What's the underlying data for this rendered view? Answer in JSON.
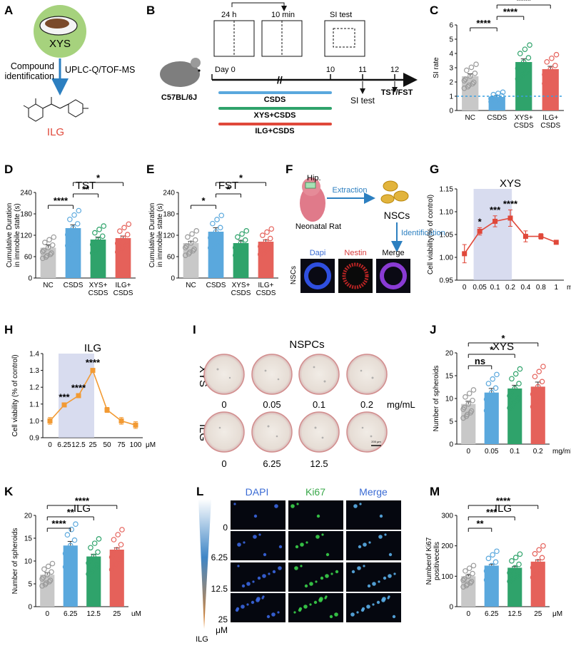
{
  "panel_labels": [
    "A",
    "B",
    "C",
    "D",
    "E",
    "F",
    "G",
    "H",
    "I",
    "J",
    "K",
    "L",
    "M"
  ],
  "panelA": {
    "herb": "XYS",
    "method": "UPLC-Q/TOF-MS",
    "step": [
      "Compound",
      "identification"
    ],
    "product": "ILG"
  },
  "panelB": {
    "strain": "C57BL/6J",
    "top_24h": "24 h",
    "top_10min": "10 min",
    "si_box": "SI test",
    "days": [
      "Day 0",
      "10",
      "11",
      "12"
    ],
    "si_test": "SI test",
    "tst_fst": "TST/FST",
    "groups": [
      "CSDS",
      "XYS+CSDS",
      "ILG+CSDS"
    ],
    "group_colors": [
      "#5aa8dd",
      "#2fa36b",
      "#e0483a"
    ]
  },
  "panelF": {
    "region": "Hip.",
    "animal": "Neonatal Rat",
    "extraction": "Extraction",
    "nscs": "NSCs",
    "identification": "Identification",
    "stains": [
      "Dapi",
      "Nestin",
      "Merge"
    ],
    "row_label": "NSCs"
  },
  "panelI": {
    "title": "NSPCs",
    "rows": [
      "XYS",
      "ILG"
    ],
    "xys_doses": [
      "0",
      "0.05",
      "0.1",
      "0.2"
    ],
    "xys_unit": "mg/mL",
    "ilg_doses": [
      "0",
      "6.25",
      "12.5"
    ],
    "scale": "200 μm"
  },
  "panelL": {
    "channels": [
      "DAPI",
      "Ki67",
      "Merge"
    ],
    "channel_colors": [
      "#3a6bd4",
      "#3aa84a",
      "#3a6bd4"
    ],
    "doses": [
      "0",
      "6.25",
      "12.5",
      "25"
    ],
    "unit": "μM",
    "gradient_label": "ILG"
  },
  "chart_data": [
    {
      "id": "C",
      "type": "bar",
      "title": "",
      "ylabel": "SI rate",
      "ylim": [
        0,
        6
      ],
      "yticks": [
        "0",
        "1",
        "2",
        "3",
        "4",
        "5",
        "6"
      ],
      "categories": [
        "NC",
        "CSDS",
        "XYS+\nCSDS",
        "ILG+\nCSDS"
      ],
      "values": [
        2.4,
        0.95,
        3.4,
        2.9
      ],
      "errors": [
        0.18,
        0.1,
        0.22,
        0.2
      ],
      "colors": [
        "#c8c8c8",
        "#5aa8dd",
        "#2fa36b",
        "#e5615a"
      ],
      "reference_line": 1.0,
      "significance": [
        {
          "from": 0,
          "to": 1,
          "label": "****"
        },
        {
          "from": 1,
          "to": 2,
          "label": "****"
        },
        {
          "from": 1,
          "to": 3,
          "label": "****"
        }
      ]
    },
    {
      "id": "D",
      "type": "bar",
      "title": "TST",
      "ylabel": "Cumulative Duration\nin immobile state (s)",
      "ylim": [
        0,
        240
      ],
      "yticks": [
        "0",
        "60",
        "120",
        "180",
        "240"
      ],
      "categories": [
        "NC",
        "CSDS",
        "XYS+\nCSDS",
        "ILG+\nCSDS"
      ],
      "values": [
        85,
        140,
        108,
        112
      ],
      "errors": [
        8,
        9,
        7,
        6
      ],
      "colors": [
        "#c8c8c8",
        "#5aa8dd",
        "#2fa36b",
        "#e5615a"
      ],
      "significance": [
        {
          "from": 0,
          "to": 1,
          "label": "****"
        },
        {
          "from": 1,
          "to": 2,
          "label": "**"
        },
        {
          "from": 1,
          "to": 3,
          "label": "*"
        }
      ]
    },
    {
      "id": "E",
      "type": "bar",
      "title": "FST",
      "ylabel": "Cumulative Duration\nin immobile state (s)",
      "ylim": [
        0,
        240
      ],
      "yticks": [
        "0",
        "60",
        "120",
        "180",
        "240"
      ],
      "categories": [
        "NC",
        "CSDS",
        "XYS+\nCSDS",
        "ILG+\nCSDS"
      ],
      "values": [
        98,
        130,
        98,
        102
      ],
      "errors": [
        5,
        11,
        8,
        5
      ],
      "colors": [
        "#c8c8c8",
        "#5aa8dd",
        "#2fa36b",
        "#e5615a"
      ],
      "significance": [
        {
          "from": 0,
          "to": 1,
          "label": "*"
        },
        {
          "from": 1,
          "to": 2,
          "label": "*"
        },
        {
          "from": 1,
          "to": 3,
          "label": "*"
        }
      ]
    },
    {
      "id": "G",
      "type": "line",
      "title": "XYS",
      "ylabel": "Cell viability(% of control)",
      "xunit": "mg/mL",
      "ylim": [
        0.95,
        1.15
      ],
      "yticks": [
        "0.95",
        "1.00",
        "1.05",
        "1.10",
        "1.15"
      ],
      "categories": [
        "0",
        "0.05",
        "0.1",
        "0.2",
        "0.4",
        "0.8",
        "1"
      ],
      "values": [
        1.008,
        1.057,
        1.079,
        1.086,
        1.046,
        1.046,
        1.033
      ],
      "errors": [
        0.02,
        0.008,
        0.012,
        0.018,
        0.012,
        0.006,
        0.004
      ],
      "color": "#e0483a",
      "shaded": [
        1,
        3
      ],
      "point_labels": [
        "",
        "*",
        "***",
        "****",
        "",
        "",
        ""
      ]
    },
    {
      "id": "H",
      "type": "line",
      "title": "ILG",
      "ylabel": "Cell viability (% of control)",
      "xunit": "μM",
      "ylim": [
        0.9,
        1.4
      ],
      "yticks": [
        "0.9",
        "1.0",
        "1.1",
        "1.2",
        "1.3",
        "1.4"
      ],
      "categories": [
        "0",
        "6.25",
        "12.5",
        "25",
        "50",
        "75",
        "100"
      ],
      "values": [
        1.0,
        1.095,
        1.15,
        1.3,
        1.065,
        1.0,
        0.975
      ],
      "errors": [
        0.02,
        0.01,
        0.01,
        0.01,
        0.015,
        0.02,
        0.02
      ],
      "color": "#f29a33",
      "shaded": [
        1,
        3
      ],
      "point_labels": [
        "",
        "***",
        "****",
        "****",
        "",
        "",
        ""
      ]
    },
    {
      "id": "J",
      "type": "bar",
      "title": "XYS",
      "ylabel": "Number of spheroids",
      "xunit": "mg/mL",
      "ylim": [
        0,
        20
      ],
      "yticks": [
        "0",
        "5",
        "10",
        "15",
        "20"
      ],
      "categories": [
        "0",
        "0.05",
        "0.1",
        "0.2"
      ],
      "values": [
        8.8,
        11.3,
        12.2,
        12.6
      ],
      "errors": [
        0.6,
        0.9,
        0.7,
        1.0
      ],
      "colors": [
        "#c8c8c8",
        "#5aa8dd",
        "#2fa36b",
        "#e5615a"
      ],
      "significance": [
        {
          "from": 0,
          "to": 1,
          "label": "ns"
        },
        {
          "from": 0,
          "to": 2,
          "label": "*"
        },
        {
          "from": 0,
          "to": 3,
          "label": "*"
        }
      ]
    },
    {
      "id": "K",
      "type": "bar",
      "title": "ILG",
      "ylabel": "Number of spheroids",
      "xunit": "uM",
      "ylim": [
        0,
        20
      ],
      "yticks": [
        "0",
        "5",
        "10",
        "15",
        "20"
      ],
      "categories": [
        "0",
        "6.25",
        "12.5",
        "25"
      ],
      "values": [
        7.0,
        13.4,
        11.0,
        12.5
      ],
      "errors": [
        0.5,
        0.9,
        0.5,
        0.4
      ],
      "colors": [
        "#c8c8c8",
        "#5aa8dd",
        "#2fa36b",
        "#e5615a"
      ],
      "significance": [
        {
          "from": 0,
          "to": 1,
          "label": "****"
        },
        {
          "from": 0,
          "to": 2,
          "label": "**"
        },
        {
          "from": 0,
          "to": 3,
          "label": "****"
        }
      ]
    },
    {
      "id": "M",
      "type": "bar",
      "title": "ILG",
      "ylabel": "Numberof Ki67\npositivecells",
      "xunit": "μM",
      "ylim": [
        0,
        300
      ],
      "yticks": [
        "0",
        "100",
        "200",
        "300"
      ],
      "categories": [
        "0",
        "6.25",
        "12.5",
        "25"
      ],
      "values": [
        100,
        135,
        128,
        148
      ],
      "errors": [
        4,
        4,
        4,
        6
      ],
      "colors": [
        "#c8c8c8",
        "#5aa8dd",
        "#2fa36b",
        "#e5615a"
      ],
      "significance": [
        {
          "from": 0,
          "to": 1,
          "label": "**"
        },
        {
          "from": 0,
          "to": 2,
          "label": "***"
        },
        {
          "from": 0,
          "to": 3,
          "label": "****"
        }
      ]
    }
  ]
}
